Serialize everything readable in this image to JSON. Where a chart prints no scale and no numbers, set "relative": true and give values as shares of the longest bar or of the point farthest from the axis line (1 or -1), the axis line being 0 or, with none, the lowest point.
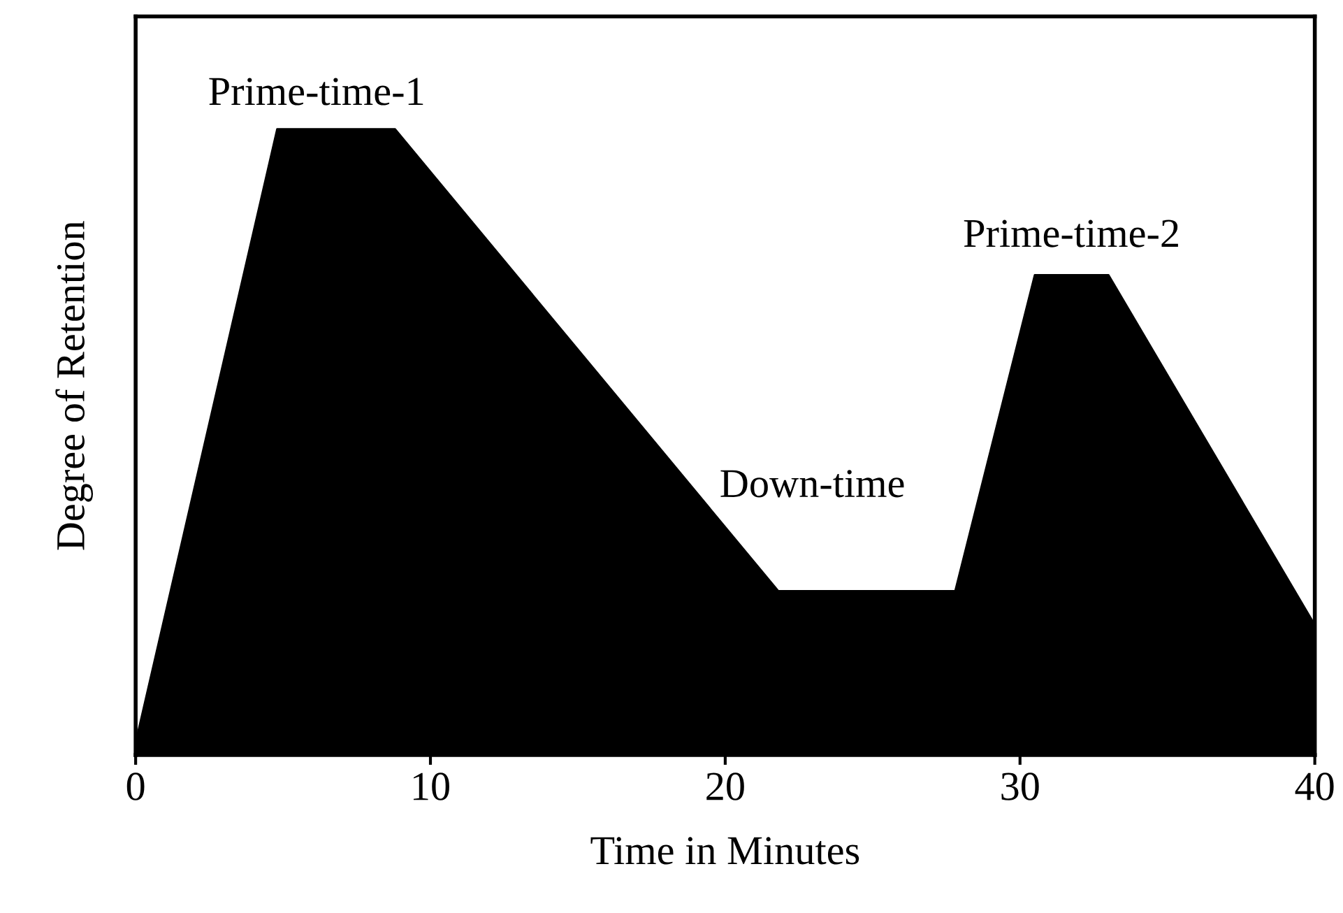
{
  "chart_data": {
    "type": "area",
    "relative": true,
    "xlabel": "Time in Minutes",
    "ylabel": "Degree of Retention",
    "x": [
      0,
      4.8,
      8.8,
      21.8,
      27.8,
      30.5,
      33.0,
      40
    ],
    "series": [
      {
        "color": "#000000",
        "values": [
          0.02,
          1,
          1,
          0.262,
          0.262,
          0.767,
          0.767,
          0.208
        ]
      }
    ],
    "xlim": [
      0,
      40
    ],
    "xticks": [
      0,
      10,
      20,
      30,
      40
    ],
    "tick_labels": "x",
    "grid": false,
    "legend": false,
    "annotations": [
      {
        "text": "Prime-time-1",
        "x": 6.8,
        "y": 1
      },
      {
        "text": "Down-time",
        "x": 24.8,
        "y": 0.262
      },
      {
        "text": "Prime-time-2",
        "x": 31.75,
        "y": 0.767
      }
    ]
  }
}
